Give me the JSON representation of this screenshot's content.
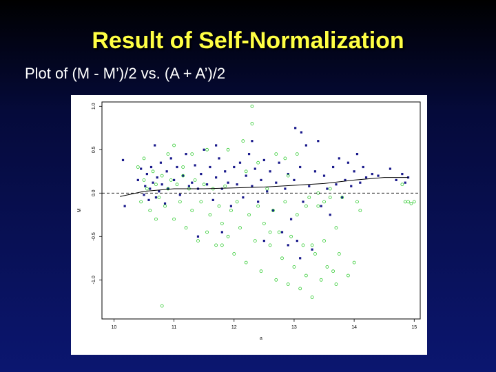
{
  "slide": {
    "title": "Result of Self-Normalization",
    "subtitle": "Plot of (M - M’)/2 vs. (A + A’)/2"
  },
  "chart_data": {
    "type": "scatter",
    "xlabel": "a",
    "ylabel": "M",
    "xlim": [
      9.8,
      15.1
    ],
    "ylim": [
      -1.45,
      1.05
    ],
    "x_ticks": [
      10,
      11,
      12,
      13,
      14,
      15
    ],
    "x_tick_labels": [
      "10",
      "11",
      "12",
      "13",
      "14",
      "15"
    ],
    "y_ticks": [
      1.0,
      0.5,
      0.0,
      -0.5,
      -1.0
    ],
    "y_tick_labels": [
      "1.0",
      "0.5",
      "0.0",
      "-0.5",
      "-1.0"
    ],
    "reference_line": {
      "y": 0.0,
      "style": "dashed"
    },
    "lowess": {
      "x": [
        10.1,
        10.5,
        11.0,
        11.5,
        12.0,
        12.5,
        13.0,
        13.5,
        14.0,
        14.5,
        14.9
      ],
      "y": [
        -0.04,
        0.02,
        0.05,
        0.05,
        0.06,
        0.07,
        0.09,
        0.11,
        0.15,
        0.18,
        0.18
      ]
    },
    "series": [
      {
        "marker": "filled-square",
        "color": "#1a1a8c",
        "points": [
          [
            10.15,
            0.38
          ],
          [
            10.18,
            -0.15
          ],
          [
            10.4,
            0.15
          ],
          [
            10.45,
            0.28
          ],
          [
            10.5,
            -0.02
          ],
          [
            10.52,
            0.08
          ],
          [
            10.55,
            0.22
          ],
          [
            10.58,
            -0.08
          ],
          [
            10.6,
            0.05
          ],
          [
            10.62,
            0.3
          ],
          [
            10.65,
            0.12
          ],
          [
            10.68,
            0.55
          ],
          [
            10.7,
            -0.05
          ],
          [
            10.72,
            0.18
          ],
          [
            10.75,
            0.02
          ],
          [
            10.78,
            0.35
          ],
          [
            10.8,
            0.1
          ],
          [
            10.85,
            -0.12
          ],
          [
            10.88,
            0.25
          ],
          [
            10.9,
            0.05
          ],
          [
            10.95,
            0.4
          ],
          [
            11.0,
            0.15
          ],
          [
            11.05,
            0.3
          ],
          [
            11.1,
            -0.02
          ],
          [
            11.15,
            0.2
          ],
          [
            11.2,
            0.45
          ],
          [
            11.25,
            0.08
          ],
          [
            11.3,
            0.12
          ],
          [
            11.35,
            0.32
          ],
          [
            11.4,
            0.05
          ],
          [
            11.45,
            0.22
          ],
          [
            11.5,
            0.5
          ],
          [
            11.55,
            0.1
          ],
          [
            11.6,
            0.3
          ],
          [
            11.65,
            -0.08
          ],
          [
            11.7,
            0.18
          ],
          [
            11.75,
            0.4
          ],
          [
            11.8,
            0.05
          ],
          [
            11.85,
            0.25
          ],
          [
            11.9,
            0.12
          ],
          [
            11.95,
            -0.15
          ],
          [
            12.0,
            0.3
          ],
          [
            12.05,
            0.1
          ],
          [
            12.1,
            0.35
          ],
          [
            12.15,
            -0.05
          ],
          [
            12.2,
            0.2
          ],
          [
            12.25,
            0.45
          ],
          [
            12.3,
            0.08
          ],
          [
            12.35,
            0.28
          ],
          [
            12.4,
            -0.1
          ],
          [
            12.45,
            0.15
          ],
          [
            12.5,
            0.38
          ],
          [
            12.55,
            0.02
          ],
          [
            12.6,
            0.25
          ],
          [
            12.65,
            -0.2
          ],
          [
            12.7,
            0.12
          ],
          [
            12.75,
            0.35
          ],
          [
            12.8,
            -0.45
          ],
          [
            12.85,
            0.05
          ],
          [
            12.9,
            0.22
          ],
          [
            12.95,
            -0.3
          ],
          [
            13.0,
            0.15
          ],
          [
            13.02,
            0.75
          ],
          [
            13.05,
            -0.55
          ],
          [
            13.1,
            0.3
          ],
          [
            13.12,
            0.7
          ],
          [
            13.15,
            -0.1
          ],
          [
            13.2,
            0.55
          ],
          [
            13.25,
            0.08
          ],
          [
            13.3,
            -0.65
          ],
          [
            13.35,
            0.25
          ],
          [
            13.4,
            0.6
          ],
          [
            13.45,
            -0.15
          ],
          [
            13.5,
            0.2
          ],
          [
            13.55,
            0.05
          ],
          [
            13.6,
            -0.25
          ],
          [
            13.65,
            0.3
          ],
          [
            13.7,
            0.1
          ],
          [
            13.75,
            0.4
          ],
          [
            13.8,
            -0.05
          ],
          [
            13.85,
            0.15
          ],
          [
            13.9,
            0.35
          ],
          [
            13.95,
            0.08
          ],
          [
            14.0,
            0.25
          ],
          [
            14.05,
            0.45
          ],
          [
            14.1,
            0.12
          ],
          [
            14.15,
            0.3
          ],
          [
            14.2,
            0.18
          ],
          [
            14.3,
            0.22
          ],
          [
            14.4,
            0.2
          ],
          [
            14.6,
            0.28
          ],
          [
            14.7,
            0.15
          ],
          [
            14.8,
            0.22
          ],
          [
            14.85,
            0.12
          ],
          [
            14.9,
            0.18
          ],
          [
            11.4,
            -0.5
          ],
          [
            11.8,
            -0.45
          ],
          [
            12.5,
            -0.55
          ],
          [
            12.9,
            -0.6
          ],
          [
            13.1,
            -0.75
          ],
          [
            12.3,
            0.6
          ],
          [
            11.7,
            0.55
          ]
        ]
      },
      {
        "marker": "open-circle",
        "color": "#33cc33",
        "points": [
          [
            10.4,
            0.3
          ],
          [
            10.45,
            -0.1
          ],
          [
            10.5,
            0.15
          ],
          [
            10.55,
            0.05
          ],
          [
            10.6,
            -0.2
          ],
          [
            10.65,
            0.25
          ],
          [
            10.7,
            0.1
          ],
          [
            10.75,
            -0.05
          ],
          [
            10.8,
            0.2
          ],
          [
            10.85,
            -0.15
          ],
          [
            10.9,
            0.05
          ],
          [
            10.95,
            0.15
          ],
          [
            11.0,
            -0.3
          ],
          [
            11.05,
            0.1
          ],
          [
            11.1,
            -0.1
          ],
          [
            11.15,
            0.3
          ],
          [
            11.2,
            -0.4
          ],
          [
            11.25,
            0.05
          ],
          [
            11.3,
            -0.2
          ],
          [
            11.35,
            0.15
          ],
          [
            11.4,
            -0.55
          ],
          [
            11.45,
            -0.1
          ],
          [
            11.5,
            0.1
          ],
          [
            11.55,
            -0.45
          ],
          [
            11.6,
            -0.25
          ],
          [
            11.65,
            0.05
          ],
          [
            11.7,
            -0.6
          ],
          [
            11.75,
            -0.15
          ],
          [
            11.8,
            -0.35
          ],
          [
            11.85,
            0.08
          ],
          [
            11.9,
            -0.5
          ],
          [
            11.95,
            -0.2
          ],
          [
            12.0,
            -0.7
          ],
          [
            12.05,
            -0.1
          ],
          [
            12.1,
            -0.4
          ],
          [
            12.15,
            0.6
          ],
          [
            12.2,
            -0.8
          ],
          [
            12.25,
            -0.25
          ],
          [
            12.3,
            1.0
          ],
          [
            12.35,
            -0.55
          ],
          [
            12.4,
            -0.15
          ],
          [
            12.45,
            -0.9
          ],
          [
            12.5,
            -0.35
          ],
          [
            12.55,
            0.05
          ],
          [
            12.6,
            -0.6
          ],
          [
            12.65,
            -0.2
          ],
          [
            12.7,
            -1.0
          ],
          [
            12.75,
            -0.45
          ],
          [
            12.8,
            -0.75
          ],
          [
            12.85,
            -0.1
          ],
          [
            12.9,
            -1.05
          ],
          [
            12.95,
            -0.5
          ],
          [
            13.0,
            -0.85
          ],
          [
            13.05,
            -0.25
          ],
          [
            13.1,
            -1.1
          ],
          [
            13.15,
            -0.6
          ],
          [
            13.2,
            -0.95
          ],
          [
            13.25,
            -0.05
          ],
          [
            13.3,
            -1.2
          ],
          [
            13.35,
            -0.7
          ],
          [
            13.4,
            -0.15
          ],
          [
            13.45,
            -1.0
          ],
          [
            13.5,
            -0.55
          ],
          [
            13.55,
            -0.85
          ],
          [
            13.6,
            0.05
          ],
          [
            13.65,
            -0.9
          ],
          [
            13.7,
            -0.4
          ],
          [
            13.75,
            -0.7
          ],
          [
            13.8,
            -0.05
          ],
          [
            13.9,
            -0.95
          ],
          [
            14.0,
            -0.8
          ],
          [
            14.05,
            -0.1
          ],
          [
            13.05,
            0.45
          ],
          [
            13.2,
            -0.15
          ],
          [
            13.4,
            0.0
          ],
          [
            13.5,
            -0.1
          ],
          [
            13.6,
            -0.05
          ],
          [
            12.85,
            0.4
          ],
          [
            12.4,
            0.35
          ],
          [
            11.9,
            0.5
          ],
          [
            11.55,
            0.5
          ],
          [
            11.15,
            0.2
          ],
          [
            10.7,
            -0.3
          ],
          [
            10.5,
            0.4
          ],
          [
            11.0,
            0.55
          ],
          [
            11.8,
            -0.6
          ],
          [
            12.9,
            0.2
          ],
          [
            14.8,
            0.1
          ],
          [
            14.85,
            -0.1
          ],
          [
            14.9,
            -0.1
          ],
          [
            14.95,
            -0.12
          ],
          [
            15.0,
            -0.1
          ],
          [
            10.8,
            -1.3
          ],
          [
            12.3,
            0.8
          ],
          [
            11.3,
            0.45
          ],
          [
            12.6,
            -0.45
          ],
          [
            13.3,
            -0.6
          ],
          [
            13.7,
            -1.05
          ],
          [
            14.1,
            -0.2
          ],
          [
            10.9,
            0.45
          ],
          [
            12.2,
            0.25
          ],
          [
            12.7,
            0.45
          ]
        ]
      }
    ]
  }
}
